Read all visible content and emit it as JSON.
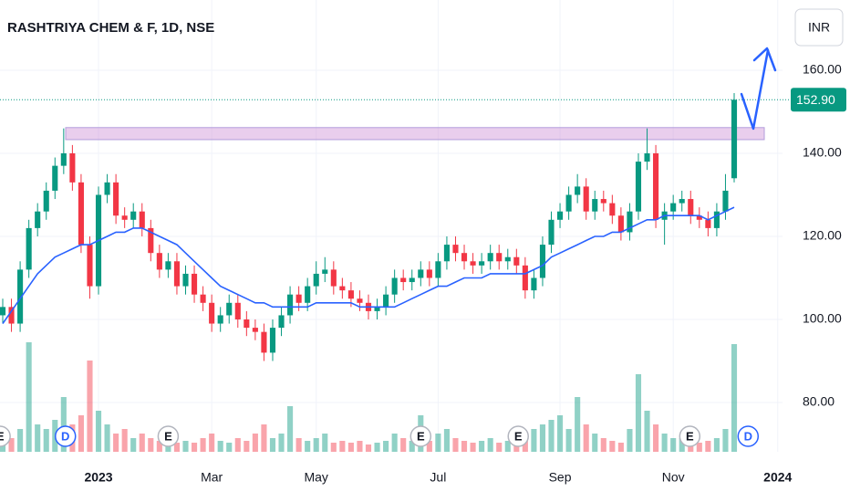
{
  "chart_data": {
    "type": "candlestick",
    "title": "RASHTRIYA CHEM & F, 1D, NSE",
    "currency": "INR",
    "categories": [
      null,
      null,
      null,
      null,
      null,
      null,
      null,
      null,
      null,
      null,
      null,
      null,
      null,
      null,
      null,
      null,
      null,
      null,
      null,
      null,
      null,
      null,
      null,
      null,
      null,
      null,
      null,
      null,
      null,
      null,
      null,
      null,
      null,
      null,
      null,
      null,
      null,
      null,
      null,
      null,
      null,
      null,
      null,
      null,
      null,
      null,
      null,
      null,
      null,
      null,
      null,
      null,
      null,
      null,
      null,
      null,
      null,
      null,
      null,
      null,
      null,
      null,
      null,
      null,
      null,
      null,
      null,
      null,
      null,
      null,
      null,
      null,
      null,
      null,
      null,
      null,
      null,
      null,
      null,
      null,
      null,
      null,
      null,
      null,
      null
    ],
    "open": [
      101,
      103,
      99,
      112,
      122,
      126,
      131,
      137,
      140,
      133,
      118,
      108,
      130,
      133,
      125,
      124,
      126,
      122,
      116,
      112,
      114,
      108,
      111,
      106,
      104,
      99,
      101,
      104,
      100,
      98,
      97,
      92,
      98,
      101,
      106,
      104,
      108,
      111,
      112,
      108,
      107,
      105,
      104,
      102,
      103,
      106,
      110,
      109,
      110,
      112,
      110,
      114,
      118,
      116,
      114,
      113,
      114,
      116,
      114,
      115,
      113,
      107,
      110,
      118,
      124,
      126,
      130,
      132,
      126,
      129,
      128,
      125,
      121,
      126,
      138,
      140,
      124,
      126,
      128,
      129,
      125,
      124,
      122,
      126,
      134
    ],
    "high": [
      105,
      105,
      114,
      124,
      128,
      133,
      139,
      146,
      142,
      135,
      120,
      132,
      135,
      135,
      127,
      128,
      128,
      124,
      118,
      116,
      116,
      113,
      113,
      108,
      106,
      103,
      106,
      106,
      102,
      100,
      99,
      100,
      103,
      108,
      108,
      110,
      114,
      115,
      114,
      110,
      109,
      107,
      106,
      105,
      108,
      112,
      112,
      112,
      114,
      114,
      116,
      120,
      120,
      118,
      116,
      116,
      118,
      118,
      117,
      117,
      115,
      112,
      120,
      126,
      128,
      132,
      135,
      134,
      131,
      131,
      130,
      127,
      128,
      140,
      146,
      142,
      128,
      130,
      131,
      131,
      127,
      126,
      128,
      135,
      154.5
    ],
    "low": [
      99,
      97,
      97,
      110,
      120,
      124,
      129,
      135,
      131,
      116,
      105,
      106,
      128,
      123,
      122,
      122,
      120,
      114,
      110,
      110,
      106,
      106,
      104,
      102,
      97,
      97,
      99,
      98,
      96,
      95,
      90,
      90,
      96,
      99,
      102,
      102,
      106,
      109,
      106,
      105,
      103,
      102,
      100,
      100,
      101,
      104,
      107,
      107,
      108,
      108,
      108,
      112,
      114,
      112,
      111,
      111,
      112,
      112,
      112,
      111,
      105,
      105,
      108,
      116,
      122,
      124,
      128,
      124,
      124,
      126,
      123,
      119,
      119,
      124,
      136,
      122,
      118,
      124,
      126,
      123,
      122,
      120,
      120,
      124,
      133
    ],
    "close": [
      103,
      99,
      112,
      122,
      126,
      131,
      137,
      140,
      133,
      118,
      108,
      130,
      133,
      125,
      124,
      126,
      122,
      116,
      112,
      114,
      108,
      111,
      106,
      104,
      99,
      101,
      104,
      100,
      98,
      97,
      92,
      98,
      101,
      106,
      104,
      108,
      111,
      112,
      108,
      107,
      105,
      104,
      102,
      103,
      106,
      110,
      109,
      110,
      112,
      110,
      114,
      118,
      116,
      114,
      113,
      114,
      116,
      114,
      115,
      113,
      107,
      110,
      118,
      124,
      126,
      130,
      132,
      126,
      129,
      128,
      125,
      121,
      126,
      138,
      140,
      124,
      126,
      128,
      129,
      125,
      124,
      122,
      126,
      131,
      152.9
    ],
    "volume": [
      20,
      15,
      25,
      120,
      30,
      25,
      35,
      60,
      30,
      40,
      100,
      45,
      30,
      20,
      25,
      15,
      20,
      15,
      12,
      15,
      10,
      12,
      10,
      15,
      20,
      12,
      10,
      15,
      12,
      20,
      30,
      15,
      20,
      50,
      15,
      12,
      15,
      20,
      10,
      12,
      10,
      12,
      8,
      10,
      12,
      20,
      15,
      12,
      40,
      12,
      20,
      25,
      15,
      12,
      10,
      12,
      15,
      10,
      12,
      10,
      20,
      25,
      30,
      35,
      40,
      25,
      60,
      30,
      20,
      15,
      12,
      10,
      25,
      85,
      45,
      30,
      20,
      15,
      15,
      12,
      10,
      12,
      15,
      25,
      118
    ],
    "moving_average": {
      "color": "#2962ff",
      "values": [
        99,
        102,
        105,
        108,
        111,
        113,
        115,
        116,
        117,
        118,
        118,
        119,
        120,
        121,
        121,
        122,
        122,
        121,
        120,
        119,
        118,
        116,
        114,
        112,
        110,
        108,
        107,
        106,
        105,
        104,
        104,
        103,
        103,
        103,
        103,
        103,
        104,
        104,
        104,
        104,
        104,
        103,
        103,
        103,
        103,
        103,
        104,
        105,
        106,
        107,
        108,
        108,
        109,
        110,
        110,
        110,
        111,
        111,
        111,
        111,
        111,
        112,
        113,
        115,
        116,
        117,
        118,
        119,
        120,
        120,
        121,
        121,
        122,
        123,
        124,
        124,
        125,
        125,
        125,
        125,
        125,
        124,
        125,
        126,
        127
      ]
    },
    "up_color": "#089981",
    "down_color": "#f23645",
    "ylim": [
      68.13,
      176.92
    ],
    "yticks": [
      {
        "value": 80,
        "label": "80.00"
      },
      {
        "value": 100,
        "label": "100.00"
      },
      {
        "value": 120,
        "label": "120.00"
      },
      {
        "value": 140,
        "label": "140.00"
      },
      {
        "value": 160,
        "label": "160.00"
      }
    ],
    "xlim": [
      -0.314,
      89.55
    ],
    "xticks": [
      {
        "value": 11,
        "label": "2023"
      },
      {
        "value": 24,
        "label": "Mar"
      },
      {
        "value": 36,
        "label": "May"
      },
      {
        "value": 50,
        "label": "Jul"
      },
      {
        "value": 64,
        "label": "Sep"
      },
      {
        "value": 77,
        "label": "Nov"
      },
      {
        "value": 89,
        "label": "2024"
      }
    ],
    "last_price": {
      "value": 152.9,
      "label": "152.90"
    },
    "resistance_zone": [
      143.3,
      146.2
    ],
    "events": [
      {
        "x": -0.3,
        "label": "E"
      },
      {
        "x": 7.2,
        "label": "D"
      },
      {
        "x": 19,
        "label": "E"
      },
      {
        "x": 48,
        "label": "E"
      },
      {
        "x": 59.2,
        "label": "E"
      },
      {
        "x": 78.9,
        "label": "E"
      },
      {
        "x": 85.6,
        "label": "D"
      }
    ]
  }
}
